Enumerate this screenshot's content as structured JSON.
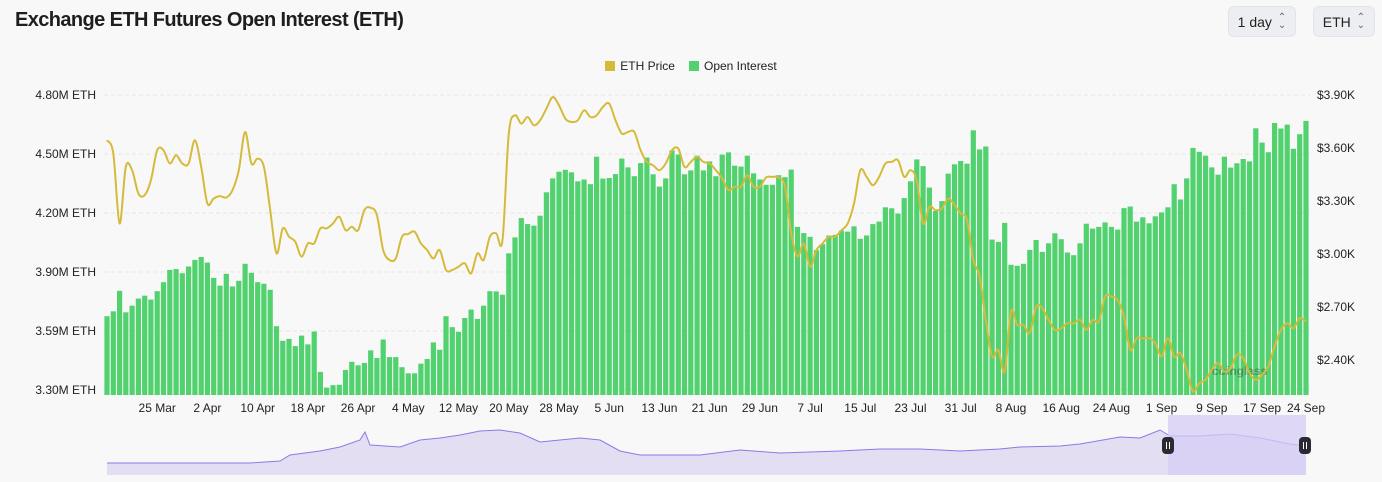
{
  "header": {
    "title": "Exchange ETH Futures Open Interest (ETH)",
    "interval_select": "1 day",
    "unit_select": "ETH"
  },
  "colors": {
    "eth_price": "#d6ba3a",
    "open_interest": "#52d16f",
    "navigator_line": "#8c7ae6",
    "navigator_fill": "#e4def2",
    "navigator_selection": "#d6cdf5",
    "handle": "#2a2a33"
  },
  "watermark": "coinglass",
  "chart_data": {
    "type": "bar+line",
    "title": "Exchange ETH Futures Open Interest (ETH)",
    "legend": {
      "placement": "top-center",
      "entries": [
        "ETH Price",
        "Open Interest"
      ]
    },
    "grid": true,
    "x_ticks": [
      "25 Mar",
      "2 Apr",
      "10 Apr",
      "18 Apr",
      "26 Apr",
      "4 May",
      "12 May",
      "20 May",
      "28 May",
      "5 Jun",
      "13 Jun",
      "21 Jun",
      "29 Jun",
      "7 Jul",
      "15 Jul",
      "23 Jul",
      "31 Jul",
      "8 Aug",
      "16 Aug",
      "24 Aug",
      "1 Sep",
      "9 Sep",
      "17 Sep",
      "24 Sep"
    ],
    "y_left": {
      "ticks": [
        "3.30M ETH",
        "3.59M ETH",
        "3.90M ETH",
        "4.20M ETH",
        "4.50M ETH",
        "4.80M ETH"
      ],
      "ylim": [
        3.27,
        4.83
      ],
      "unit": "M ETH"
    },
    "y_right": {
      "ticks": [
        "$2.40K",
        "$2.70K",
        "$3.00K",
        "$3.30K",
        "$3.60K",
        "$3.90K"
      ],
      "ylim": [
        2.2,
        3.93
      ],
      "unit": "$K"
    },
    "series": [
      {
        "name": "Open Interest",
        "type": "bar",
        "axis": "left",
        "values": [
          3.673,
          3.698,
          3.803,
          3.693,
          3.727,
          3.763,
          3.778,
          3.758,
          3.801,
          3.847,
          3.91,
          3.914,
          3.893,
          3.927,
          3.961,
          3.976,
          3.947,
          3.869,
          3.829,
          3.89,
          3.825,
          3.854,
          3.941,
          3.895,
          3.847,
          3.839,
          3.808,
          3.622,
          3.547,
          3.557,
          3.52,
          3.574,
          3.529,
          3.595,
          3.388,
          3.308,
          3.32,
          3.322,
          3.398,
          3.44,
          3.422,
          3.434,
          3.498,
          3.459,
          3.554,
          3.464,
          3.464,
          3.412,
          3.381,
          3.381,
          3.43,
          3.454,
          3.539,
          3.501,
          3.673,
          3.617,
          3.593,
          3.664,
          3.707,
          3.659,
          3.727,
          3.801,
          3.8,
          3.783,
          3.995,
          4.076,
          4.175,
          4.144,
          4.136,
          4.187,
          4.307,
          4.378,
          4.412,
          4.422,
          4.409,
          4.363,
          4.372,
          4.348,
          4.489,
          4.377,
          4.38,
          4.4,
          4.479,
          4.434,
          4.389,
          4.456,
          4.484,
          4.399,
          4.336,
          4.378,
          4.521,
          4.5,
          4.399,
          4.419,
          4.494,
          4.419,
          4.465,
          4.389,
          4.499,
          4.511,
          4.443,
          4.438,
          4.494,
          4.404,
          4.372,
          4.345,
          4.345,
          4.394,
          4.384,
          4.423,
          4.13,
          4.098,
          4.079,
          4.011,
          4.042,
          4.086,
          4.089,
          4.111,
          4.106,
          4.133,
          4.069,
          4.086,
          4.144,
          4.157,
          4.23,
          4.225,
          4.198,
          4.277,
          4.363,
          4.475,
          4.441,
          4.331,
          4.211,
          4.262,
          4.402,
          4.45,
          4.467,
          4.453,
          4.624,
          4.526,
          4.541,
          4.065,
          4.053,
          4.15,
          3.936,
          3.931,
          3.941,
          4.012,
          4.063,
          4.002,
          4.046,
          4.097,
          4.067,
          3.999,
          3.985,
          4.046,
          4.146,
          4.121,
          4.13,
          4.153,
          4.13,
          4.116,
          4.226,
          4.234,
          4.157,
          4.179,
          4.148,
          4.184,
          4.204,
          4.23,
          4.348,
          4.27,
          4.378,
          4.534,
          4.514,
          4.494,
          4.434,
          4.397,
          4.489,
          4.433,
          4.455,
          4.477,
          4.465,
          4.634,
          4.561,
          4.512,
          4.661,
          4.633,
          4.653,
          4.529,
          4.604,
          4.672
        ]
      },
      {
        "name": "ETH Price",
        "type": "line",
        "axis": "right",
        "values": [
          3.645,
          3.57,
          3.173,
          3.494,
          3.475,
          3.343,
          3.334,
          3.418,
          3.588,
          3.588,
          3.513,
          3.56,
          3.513,
          3.513,
          3.645,
          3.494,
          3.286,
          3.315,
          3.328,
          3.32,
          3.362,
          3.475,
          3.692,
          3.513,
          3.541,
          3.494,
          3.249,
          3.003,
          3.145,
          3.098,
          3.069,
          2.985,
          3.06,
          3.06,
          3.145,
          3.145,
          3.173,
          3.211,
          3.135,
          3.154,
          3.135,
          3.249,
          3.262,
          3.22,
          3.022,
          2.966,
          2.975,
          3.098,
          3.113,
          3.126,
          3.06,
          3.022,
          2.975,
          3.022,
          2.909,
          2.909,
          2.928,
          2.947,
          2.89,
          3.003,
          2.966,
          3.098,
          3.117,
          3.079,
          3.683,
          3.786,
          3.739,
          3.777,
          3.73,
          3.758,
          3.824,
          3.89,
          3.843,
          3.768,
          3.749,
          3.758,
          3.815,
          3.777,
          3.786,
          3.834,
          3.853,
          3.758,
          3.683,
          3.692,
          3.692,
          3.588,
          3.522,
          3.503,
          3.475,
          3.513,
          3.588,
          3.598,
          3.494,
          3.522,
          3.551,
          3.522,
          3.513,
          3.475,
          3.428,
          3.362,
          3.381,
          3.381,
          3.447,
          3.381,
          3.381,
          3.434,
          3.437,
          3.434,
          3.381,
          3.117,
          2.985,
          3.06,
          2.928,
          3.022,
          3.06,
          3.098,
          3.098,
          3.135,
          3.173,
          3.286,
          3.475,
          3.437,
          3.39,
          3.437,
          3.513,
          3.522,
          3.532,
          3.437,
          3.475,
          3.418,
          3.173,
          3.268,
          3.249,
          3.258,
          3.315,
          3.277,
          3.23,
          3.192,
          2.966,
          2.871,
          2.626,
          2.418,
          2.456,
          2.333,
          2.673,
          2.598,
          2.598,
          2.551,
          2.701,
          2.692,
          2.626,
          2.569,
          2.579,
          2.607,
          2.607,
          2.626,
          2.569,
          2.626,
          2.617,
          2.758,
          2.758,
          2.739,
          2.645,
          2.456,
          2.522,
          2.522,
          2.522,
          2.494,
          2.418,
          2.522,
          2.418,
          2.437,
          2.343,
          2.22,
          2.267,
          2.286,
          2.343,
          2.381,
          2.333,
          2.352,
          2.428,
          2.409,
          2.324,
          2.286,
          2.315,
          2.362,
          2.475,
          2.569,
          2.607,
          2.579,
          2.635,
          2.617
        ]
      }
    ]
  }
}
